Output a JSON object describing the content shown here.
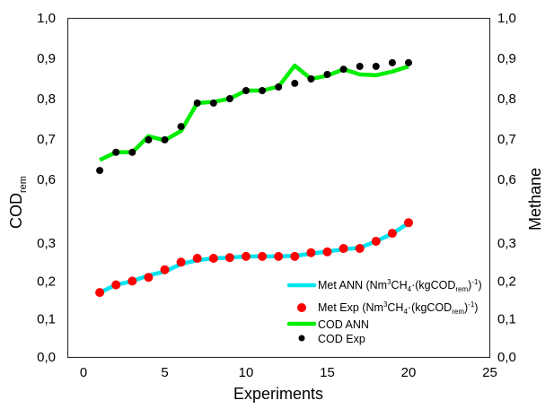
{
  "chart_data": {
    "type": "line",
    "title": "",
    "xlabel": "Experiments",
    "ylabel_left": "COD",
    "ylabel_left_subscript": "rem",
    "ylabel_right": "Methane",
    "xlim": [
      0,
      25
    ],
    "x_ticks": [
      "0",
      "5",
      "10",
      "15",
      "20",
      "25"
    ],
    "x_tick_values": [
      0,
      5,
      10,
      15,
      20,
      25
    ],
    "y_axis_broken": true,
    "y_upper_range": [
      0.6,
      1.0
    ],
    "y_lower_range": [
      0.0,
      0.3
    ],
    "y_ticks_upper": [
      "1,0",
      "0,9",
      "0,8",
      "0,7",
      "0,6"
    ],
    "y_tick_values_upper": [
      1.0,
      0.9,
      0.8,
      0.7,
      0.6
    ],
    "y_ticks_lower": [
      "0,3",
      "0,2",
      "0,1",
      "0,0"
    ],
    "y_tick_values_lower": [
      0.3,
      0.2,
      0.1,
      0.0
    ],
    "grid": false,
    "legend_position": "bottom-right",
    "x": [
      1,
      2,
      3,
      4,
      5,
      6,
      7,
      8,
      9,
      10,
      11,
      12,
      13,
      14,
      15,
      16,
      17,
      18,
      19,
      20
    ],
    "series": [
      {
        "name": "Met ANN",
        "legend_unit_prefix": " (Nm",
        "legend_sup1": "3",
        "legend_mid1": "CH",
        "legend_sub1": "4",
        "legend_mid2": "·(kgCOD",
        "legend_sub2": "rem",
        "legend_mid3": ")",
        "legend_sup2": "-1",
        "legend_end": ")",
        "kind": "line",
        "axis": "lower",
        "color": "#00e5f0",
        "values": [
          0.17,
          0.19,
          0.2,
          0.215,
          0.225,
          0.245,
          0.255,
          0.26,
          0.262,
          0.265,
          0.265,
          0.265,
          0.267,
          0.272,
          0.278,
          0.284,
          0.288,
          0.305,
          0.325,
          0.353
        ]
      },
      {
        "name": "Met Exp",
        "legend_unit_prefix": " (Nm",
        "legend_sup1": "3",
        "legend_mid1": "CH",
        "legend_sub1": "4",
        "legend_mid2": "·(kgCOD",
        "legend_sub2": "rem",
        "legend_mid3": ")",
        "legend_sup2": "-1",
        "legend_end": ")",
        "kind": "scatter",
        "axis": "lower",
        "color": "#ff0000",
        "values": [
          0.17,
          0.19,
          0.2,
          0.21,
          0.23,
          0.25,
          0.26,
          0.26,
          0.262,
          0.265,
          0.265,
          0.265,
          0.265,
          0.275,
          0.277,
          0.286,
          0.286,
          0.305,
          0.326,
          0.354
        ]
      },
      {
        "name": "COD ANN",
        "kind": "line",
        "axis": "upper",
        "color": "#00ee00",
        "values": [
          0.648,
          0.667,
          0.667,
          0.707,
          0.697,
          0.72,
          0.789,
          0.792,
          0.8,
          0.82,
          0.82,
          0.83,
          0.882,
          0.849,
          0.857,
          0.873,
          0.86,
          0.858,
          0.867,
          0.88
        ]
      },
      {
        "name": "COD Exp",
        "kind": "scatter",
        "axis": "upper",
        "color": "#000000",
        "values": [
          0.622,
          0.667,
          0.667,
          0.698,
          0.698,
          0.731,
          0.789,
          0.789,
          0.8,
          0.82,
          0.82,
          0.829,
          0.838,
          0.849,
          0.86,
          0.873,
          0.88,
          0.88,
          0.889,
          0.889
        ]
      }
    ]
  }
}
